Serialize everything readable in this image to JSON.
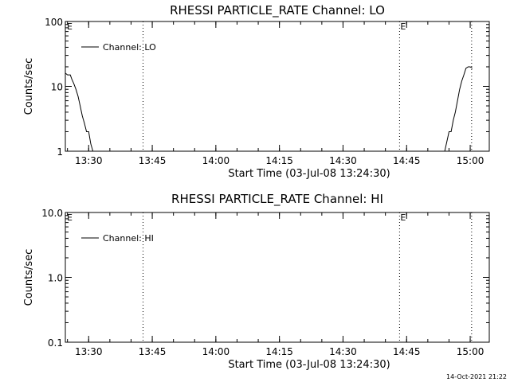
{
  "footer_timestamp": "14-Oct-2021 21:22",
  "chart_data": [
    {
      "type": "line",
      "title": "RHESSI PARTICLE_RATE Channel: LO",
      "xlabel": "Start Time (03-Jul-08 13:24:30)",
      "ylabel": "Counts/sec",
      "yscale": "log",
      "ylim": [
        1,
        100
      ],
      "xlim": [
        "13:24:30",
        "15:04:30"
      ],
      "x_ticks": [
        "13:30",
        "13:45",
        "14:00",
        "14:15",
        "14:30",
        "14:45",
        "15:00"
      ],
      "y_ticks": [
        "1",
        "10",
        "100"
      ],
      "grid": false,
      "legend_position": "top-left",
      "series": [
        {
          "name": "Channel: LO",
          "segments": [
            {
              "x": [
                "13:24:30",
                "13:25:00",
                "13:25:40",
                "13:26:00",
                "13:26:30",
                "13:27:00",
                "13:27:30",
                "13:28:00",
                "13:28:30",
                "13:29:00",
                "13:29:30",
                "13:30:00",
                "13:30:30",
                "13:31:00"
              ],
              "y": [
                16,
                15,
                15,
                13,
                11,
                9,
                7,
                5,
                3.5,
                2.7,
                2,
                2,
                1.3,
                1
              ]
            },
            {
              "x": [
                "14:54:00",
                "14:55:00",
                "14:55:30",
                "14:56:00",
                "14:56:30",
                "14:57:00",
                "14:57:30",
                "14:58:00",
                "14:58:30",
                "14:59:00",
                "14:59:30",
                "15:00:00",
                "15:00:30"
              ],
              "y": [
                1,
                2,
                2,
                3,
                4,
                6,
                9,
                12,
                15,
                19,
                20,
                20,
                19
              ]
            }
          ]
        }
      ],
      "vertical_markers": [
        {
          "time": "13:42:50",
          "label": ""
        },
        {
          "time": "14:43:20",
          "label": "E"
        },
        {
          "time": "15:00:20",
          "label": ""
        }
      ],
      "corner_label": "E"
    },
    {
      "type": "line",
      "title": "RHESSI PARTICLE_RATE Channel: HI",
      "xlabel": "Start Time (03-Jul-08 13:24:30)",
      "ylabel": "Counts/sec",
      "yscale": "log",
      "ylim": [
        0.1,
        10
      ],
      "xlim": [
        "13:24:30",
        "15:04:30"
      ],
      "x_ticks": [
        "13:30",
        "13:45",
        "14:00",
        "14:15",
        "14:30",
        "14:45",
        "15:00"
      ],
      "y_ticks": [
        "0.1",
        "1.0",
        "10.0"
      ],
      "grid": false,
      "legend_position": "top-left",
      "series": [
        {
          "name": "Channel: HI",
          "segments": []
        }
      ],
      "vertical_markers": [
        {
          "time": "13:42:50",
          "label": ""
        },
        {
          "time": "14:43:20",
          "label": "E"
        },
        {
          "time": "15:00:20",
          "label": ""
        }
      ],
      "corner_label": "E"
    }
  ]
}
